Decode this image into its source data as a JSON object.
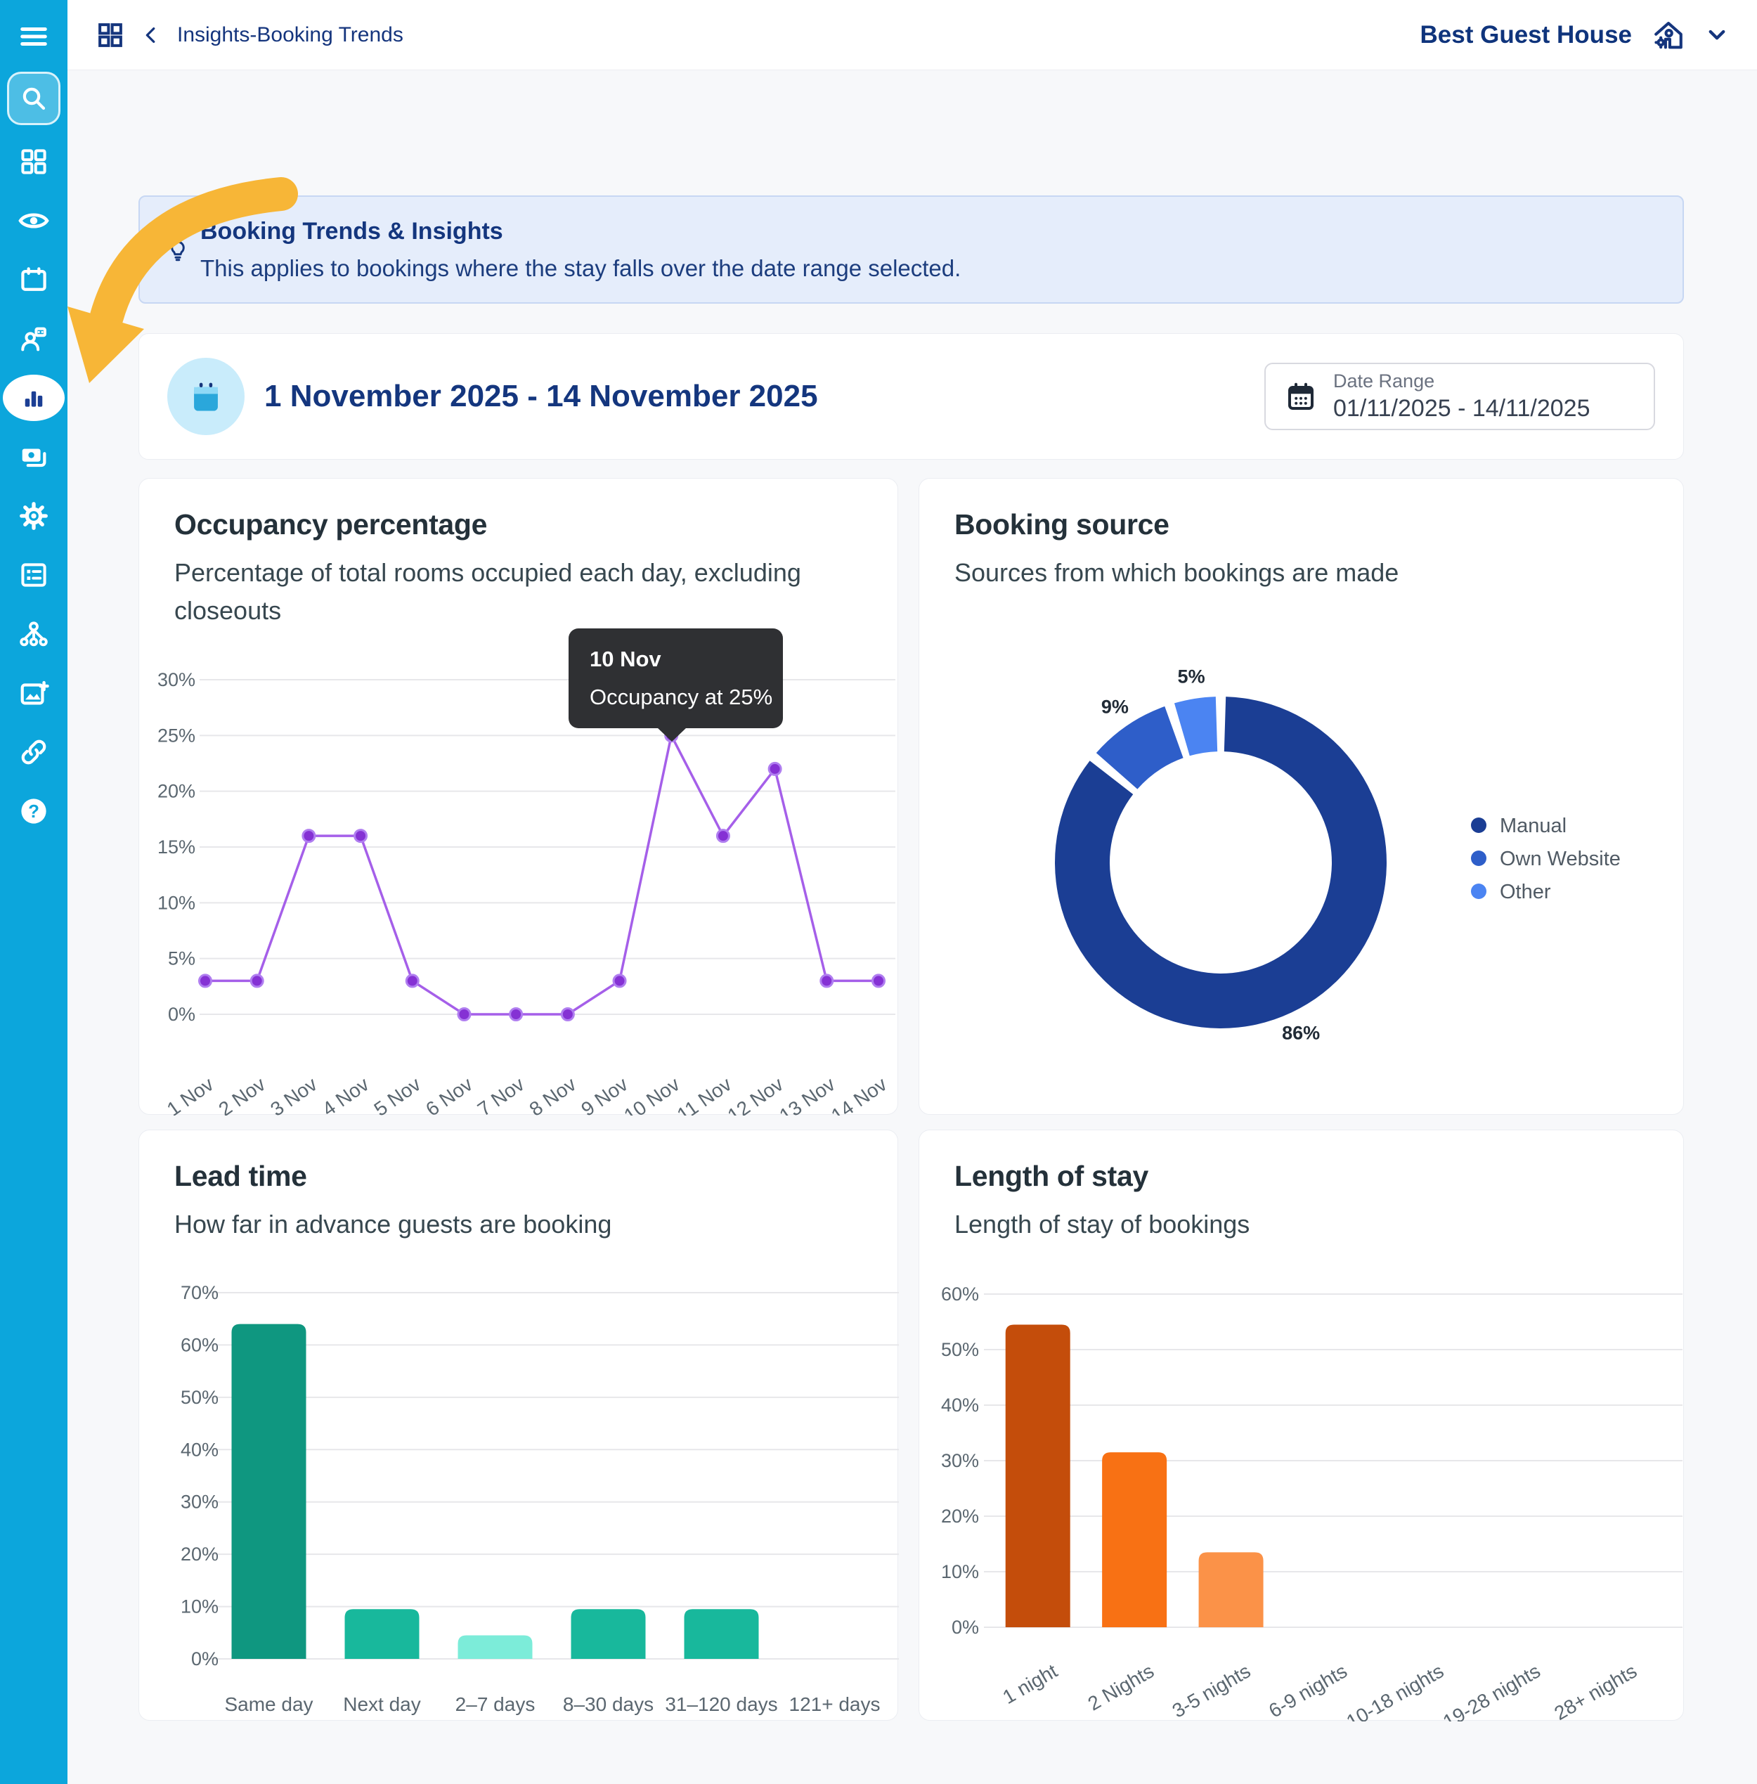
{
  "sidebar": {
    "items": [
      {
        "name": "menu",
        "icon": "hamburger-icon"
      },
      {
        "name": "search",
        "icon": "search-icon",
        "highlighted": true
      },
      {
        "name": "dashboard",
        "icon": "grid-icon"
      },
      {
        "name": "view",
        "icon": "eye-icon"
      },
      {
        "name": "calendar",
        "icon": "calendar-icon"
      },
      {
        "name": "guests",
        "icon": "guest-icon"
      },
      {
        "name": "insights",
        "icon": "bar-chart-icon",
        "active": true
      },
      {
        "name": "payments",
        "icon": "payments-icon"
      },
      {
        "name": "settings",
        "icon": "gear-icon"
      },
      {
        "name": "forms",
        "icon": "form-icon"
      },
      {
        "name": "channels",
        "icon": "hierarchy-icon"
      },
      {
        "name": "media",
        "icon": "image-plus-icon"
      },
      {
        "name": "links",
        "icon": "link-icon"
      },
      {
        "name": "help",
        "icon": "question-icon"
      }
    ]
  },
  "header": {
    "breadcrumb": "Insights-Booking Trends",
    "property_name": "Best Guest House"
  },
  "banner": {
    "title": "Booking Trends & Insights",
    "description": "This applies to bookings where the stay falls over the date range selected."
  },
  "period": {
    "title": "1 November 2025 - 14 November 2025",
    "date_range_label": "Date Range",
    "date_range_value": "01/11/2025 - 14/11/2025"
  },
  "cards": {
    "occupancy": {
      "title": "Occupancy percentage",
      "subtitle": "Percentage of total rooms occupied each day, excluding closeouts",
      "tooltip": {
        "date": "10 Nov",
        "text": "Occupancy at 25%"
      }
    },
    "booking_source": {
      "title": "Booking source",
      "subtitle": "Sources from which bookings are made"
    },
    "lead_time": {
      "title": "Lead time",
      "subtitle": "How far in advance guests are booking"
    },
    "length_of_stay": {
      "title": "Length of stay",
      "subtitle": "Length of stay of bookings"
    }
  },
  "chart_data": [
    {
      "type": "line",
      "title": "Occupancy percentage",
      "categories": [
        "1 Nov",
        "2 Nov",
        "3 Nov",
        "4 Nov",
        "5 Nov",
        "6 Nov",
        "7 Nov",
        "8 Nov",
        "9 Nov",
        "10 Nov",
        "11 Nov",
        "12 Nov",
        "13 Nov",
        "14 Nov"
      ],
      "series": [
        {
          "name": "Occupancy",
          "values": [
            3,
            3,
            16,
            16,
            3,
            0,
            0,
            0,
            3,
            25,
            16,
            22,
            3,
            3
          ]
        }
      ],
      "ylim": [
        0,
        30
      ],
      "yticks": [
        "0%",
        "5%",
        "10%",
        "15%",
        "20%",
        "25%",
        "30%"
      ],
      "grid": true,
      "line_color": "#a55fe9",
      "point_color": "#8531d4"
    },
    {
      "type": "pie",
      "title": "Booking source",
      "donut": true,
      "labels": [
        "Manual",
        "Own Website",
        "Other"
      ],
      "values": [
        86,
        9,
        5
      ],
      "value_labels": [
        "86%",
        "9%",
        "5%"
      ],
      "colors": [
        "#1b3e94",
        "#2e5ec9",
        "#4b84f2"
      ],
      "legend_position": "right"
    },
    {
      "type": "bar",
      "title": "Lead time",
      "categories": [
        "Same day",
        "Next day",
        "2–7 days",
        "8–30 days",
        "31–120 days",
        "121+ days"
      ],
      "values": [
        64,
        9.5,
        4.5,
        9.5,
        9.5,
        0
      ],
      "colors": [
        "#0f9780",
        "#18b89c",
        "#7cecd9",
        "#18b89c",
        "#18b89c",
        "#18b89c"
      ],
      "ylim": [
        0,
        70
      ],
      "yticks": [
        "0%",
        "10%",
        "20%",
        "30%",
        "40%",
        "50%",
        "60%",
        "70%"
      ],
      "grid": true
    },
    {
      "type": "bar",
      "title": "Length of stay",
      "categories": [
        "1 night",
        "2 Nights",
        "3-5 nights",
        "6-9 nights",
        "10-18 nights",
        "19-28 nights",
        "28+ nights"
      ],
      "values": [
        54.5,
        31.5,
        13.5,
        0,
        0,
        0,
        0
      ],
      "colors": [
        "#c44d0b",
        "#f87114",
        "#fb9248",
        "#fb9248",
        "#fb9248",
        "#fb9248",
        "#fb9248"
      ],
      "ylim": [
        0,
        60
      ],
      "yticks": [
        "0%",
        "10%",
        "20%",
        "30%",
        "40%",
        "50%",
        "60%"
      ],
      "grid": true
    }
  ]
}
